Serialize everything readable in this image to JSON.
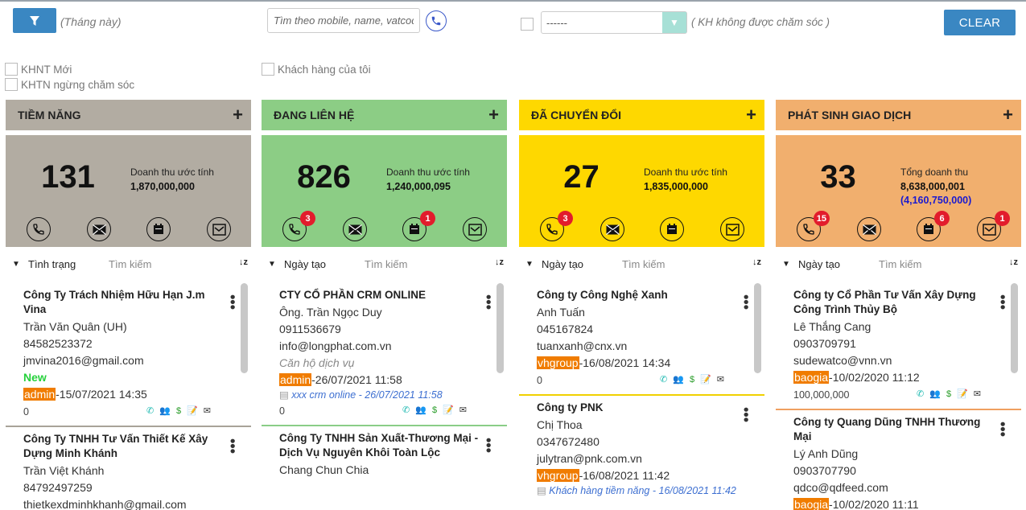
{
  "toolbar": {
    "period": "(Tháng này)",
    "search_placeholder": "Tìm theo mobile, name, vatcode...",
    "select_value": "------",
    "not_cared": "( KH không được chăm sóc )",
    "clear": "CLEAR"
  },
  "filters": {
    "new": "KHNT Mới",
    "stopped": "KHTN ngừng chăm sóc",
    "mine": "Khách hàng của tôi"
  },
  "columns": [
    {
      "title": "TIỀM NĂNG",
      "count": "131",
      "rev_label": "Doanh thu ước tính",
      "rev_value": "1,870,000,000",
      "sort": "Tình trạng",
      "search": "Tìm kiếm",
      "color": "#b2aca2",
      "badges": {
        "call": "",
        "mail": "",
        "task": "",
        "note": ""
      },
      "cards": [
        {
          "name": "Công Ty Trách Nhiệm Hữu Hạn J.m Vina",
          "contact": "Trần Văn Quân (UH)",
          "phone": "84582523372",
          "email": "jmvina2016@gmail.com",
          "status": "New",
          "tag": "admin",
          "date": "-15/07/2021 14:35",
          "amount": "0"
        },
        {
          "name": "Công Ty TNHH Tư Vấn Thiết Kế Xây Dựng Minh Khánh",
          "contact": "Trần Việt Khánh",
          "phone": "84792497259",
          "email": "thietkexdminhkhanh@gmail.com"
        }
      ]
    },
    {
      "title": "ĐANG LIÊN HỆ",
      "count": "826",
      "rev_label": "Doanh thu ước tính",
      "rev_value": "1,240,000,095",
      "sort": "Ngày tạo",
      "search": "Tìm kiếm",
      "color": "#8ccd85",
      "badges": {
        "call": "3",
        "mail": "",
        "task": "1",
        "note": ""
      },
      "cards": [
        {
          "name": "CTY CỔ PHẦN CRM ONLINE",
          "contact": "Ông. Trần Ngọc Duy",
          "phone": "0911536679",
          "email": "info@longphat.com.vn",
          "status": "Căn hộ dịch vụ",
          "tag": "admin",
          "date": "-26/07/2021 11:58",
          "note": "xxx crm online - 26/07/2021 11:58",
          "amount": "0"
        },
        {
          "name": "Công Ty TNHH Sản Xuất-Thương Mại - Dịch Vụ Nguyên Khôi Toàn Lộc",
          "contact": "Chang Chun Chia"
        }
      ]
    },
    {
      "title": "ĐÃ CHUYỂN ĐỔI",
      "count": "27",
      "rev_label": "Doanh thu ước tính",
      "rev_value": "1,835,000,000",
      "sort": "Ngày tạo",
      "search": "Tìm kiếm",
      "color": "#fed800",
      "badges": {
        "call": "3",
        "mail": "",
        "task": "",
        "note": ""
      },
      "cards": [
        {
          "name": "Công ty Công Nghệ Xanh",
          "contact": "Anh Tuấn",
          "phone": "045167824",
          "email": "tuanxanh@cnx.vn",
          "tag": "vhgroup",
          "date": "-16/08/2021 14:34",
          "amount": "0"
        },
        {
          "name": "Công ty PNK",
          "contact": "Chị Thoa",
          "phone": "0347672480",
          "email": "julytran@pnk.com.vn",
          "tag": "vhgroup",
          "date": "-16/08/2021 11:42",
          "note": "Khách hàng tiềm năng - 16/08/2021 11:42"
        }
      ]
    },
    {
      "title": "PHÁT SINH GIAO DỊCH",
      "count": "33",
      "rev_label": "Tổng doanh thu",
      "rev_value": "8,638,000,001",
      "rev_sub": "(4,160,750,000)",
      "sort": "Ngày tạo",
      "search": "Tìm kiếm",
      "color": "#f1af6e",
      "badges": {
        "call": "15",
        "mail": "",
        "task": "6",
        "note": "1"
      },
      "cards": [
        {
          "name": "Công ty Cổ Phần Tư Vấn Xây Dựng Công Trình Thủy Bộ",
          "contact": "Lê Thắng Cang",
          "phone": "0903709791",
          "email": "sudewatco@vnn.vn",
          "tag": "baogia",
          "date": "-10/02/2020 11:12",
          "amount": "100,000,000"
        },
        {
          "name": "Công ty Quang Dũng TNHH Thương Mại",
          "contact": "Lý Anh Dũng",
          "phone": "0903707790",
          "email": "qdco@qdfeed.com",
          "tag": "baogia",
          "date": "-10/02/2020 11:11"
        }
      ]
    }
  ]
}
